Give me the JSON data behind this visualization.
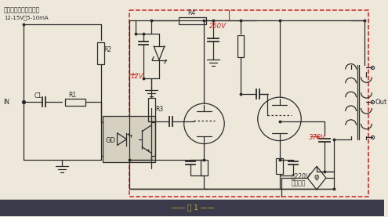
{
  "bg_color": "#ede8da",
  "footer_bg": "#3a3a4a",
  "footer_text_color": "#c8b830",
  "line_color": "#2a2a2a",
  "red_color": "#cc2020",
  "label_top_left": "小功率变压器整流输出",
  "label_voltage": "12-15V，5-10mA",
  "label_250v": "250V",
  "label_12v": "12V",
  "label_370v": "370V",
  "label_220v": "～220V",
  "label_city": "市电输入",
  "label_r1": "R1",
  "label_r2": "R2",
  "label_r3": "R3",
  "label_r4": "R4",
  "label_c1": "C1",
  "label_gd": "GD",
  "label_in": "IN",
  "label_out": "Out",
  "label_fig": "—— 图 1 ——"
}
